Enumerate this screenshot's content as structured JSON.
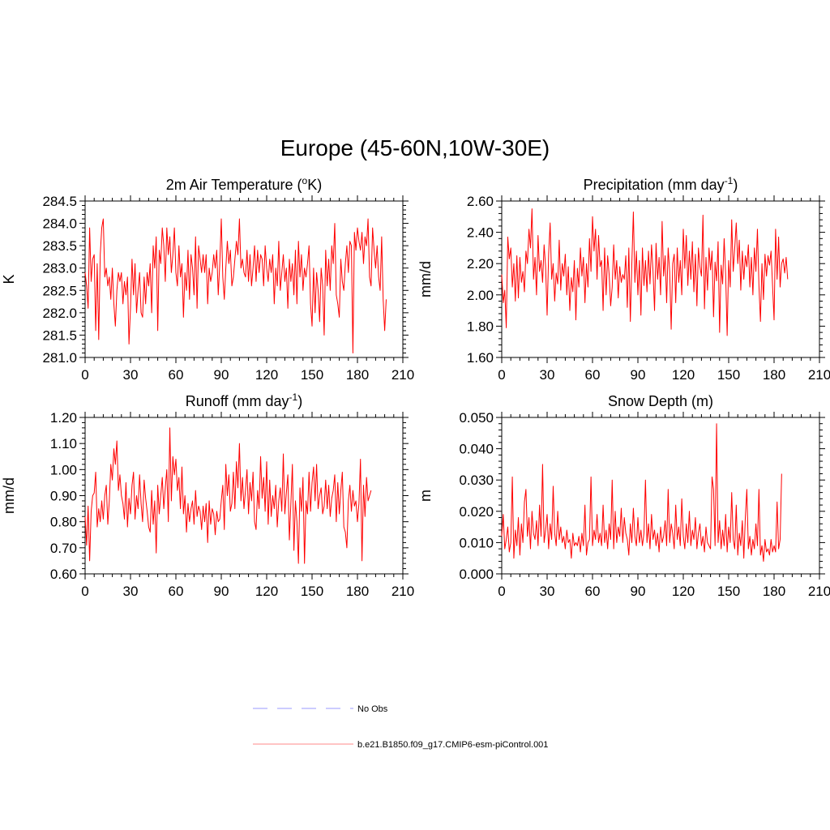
{
  "figure": {
    "title": "Europe (45-60N,10W-30E)"
  },
  "legend": {
    "entries": [
      {
        "label": "No Obs",
        "color": "#9999ff",
        "style": "dashed"
      },
      {
        "label": "b.e21.B1850.f09_g17.CMIP6-esm-piControl.001",
        "color": "#ff8888",
        "style": "solid"
      }
    ]
  },
  "chart_data": [
    {
      "type": "line",
      "title_main": "2m Air Temperature (",
      "title_sup": "o",
      "title_post": "K)",
      "ylabel": "K",
      "xlabel": "",
      "xlim": [
        0,
        210
      ],
      "ylim": [
        281.0,
        284.5
      ],
      "xticks": [
        0,
        30,
        60,
        90,
        120,
        150,
        180,
        210
      ],
      "xtick_labels": [
        "0",
        "30",
        "60",
        "90",
        "120",
        "150",
        "180",
        "210"
      ],
      "yticks": [
        281.0,
        281.5,
        282.0,
        282.5,
        283.0,
        283.5,
        284.0,
        284.5
      ],
      "ytick_labels": [
        "281.0",
        "281.5",
        "282.0",
        "282.5",
        "283.0",
        "283.5",
        "284.0",
        "284.5"
      ],
      "series": [
        {
          "name": "b.e21.B1850.f09_g17.CMIP6-esm-piControl.001",
          "color": "#ff0000",
          "x_start": 0,
          "values": [
            282.9,
            282.6,
            282.1,
            283.9,
            282.7,
            283.2,
            283.3,
            281.6,
            283.1,
            281.4,
            283.3,
            283.9,
            284.1,
            282.8,
            283.0,
            282.6,
            282.8,
            282.3,
            283.0,
            282.2,
            281.7,
            282.5,
            282.9,
            282.7,
            282.9,
            282.2,
            282.7,
            282.4,
            282.8,
            281.3,
            282.1,
            283.2,
            282.4,
            283.1,
            282.0,
            282.5,
            282.9,
            282.0,
            281.9,
            282.8,
            282.2,
            282.9,
            282.6,
            283.1,
            282.0,
            283.5,
            283.0,
            283.7,
            281.6,
            283.4,
            283.1,
            283.9,
            283.5,
            282.7,
            283.9,
            283.3,
            283.7,
            282.9,
            283.3,
            283.9,
            282.9,
            282.6,
            283.5,
            282.8,
            283.1,
            281.9,
            282.9,
            282.5,
            283.4,
            282.3,
            283.3,
            283.0,
            282.4,
            283.7,
            282.1,
            283.5,
            283.2,
            282.9,
            283.3,
            282.9,
            283.3,
            282.2,
            283.0,
            282.7,
            282.9,
            283.3,
            283.0,
            283.4,
            282.4,
            283.1,
            284.1,
            282.8,
            282.3,
            283.0,
            283.6,
            283.1,
            283.4,
            282.6,
            282.8,
            283.2,
            283.6,
            283.3,
            284.1,
            283.0,
            283.2,
            282.9,
            282.8,
            283.4,
            282.7,
            283.3,
            282.6,
            283.0,
            283.5,
            282.7,
            283.4,
            282.9,
            283.3,
            283.2,
            282.6,
            283.5,
            283.0,
            282.7,
            283.2,
            282.9,
            283.3,
            282.2,
            283.0,
            282.6,
            283.6,
            282.5,
            282.9,
            283.3,
            282.7,
            283.0,
            282.1,
            283.2,
            282.7,
            283.1,
            282.4,
            283.4,
            282.2,
            283.6,
            282.8,
            283.3,
            282.5,
            283.0,
            282.8,
            283.1,
            283.5,
            282.2,
            281.7,
            283.0,
            282.0,
            282.9,
            282.5,
            281.8,
            283.0,
            282.6,
            281.5,
            283.4,
            282.6,
            283.2,
            282.5,
            283.5,
            283.1,
            284.0,
            282.4,
            282.2,
            281.9,
            283.2,
            282.7,
            282.5,
            283.1,
            283.5,
            282.9,
            283.6,
            283.5,
            281.1,
            283.8,
            283.4,
            283.9,
            283.6,
            283.4,
            283.8,
            283.1,
            283.7,
            283.5,
            284.1,
            282.8,
            282.6,
            283.9,
            283.4,
            283.0,
            283.5,
            282.8,
            282.5,
            283.7,
            282.3,
            281.6,
            282.3
          ]
        }
      ]
    },
    {
      "type": "line",
      "title_main": "Precipitation (mm day",
      "title_sup": "-1",
      "title_post": ")",
      "ylabel": "mm/d",
      "xlabel": "",
      "xlim": [
        0,
        210
      ],
      "ylim": [
        1.6,
        2.6
      ],
      "xticks": [
        0,
        30,
        60,
        90,
        120,
        150,
        180,
        210
      ],
      "xtick_labels": [
        "0",
        "30",
        "60",
        "90",
        "120",
        "150",
        "180",
        "210"
      ],
      "yticks": [
        1.6,
        1.8,
        2.0,
        2.2,
        2.4,
        2.6
      ],
      "ytick_labels": [
        "1.60",
        "1.80",
        "2.00",
        "2.20",
        "2.40",
        "2.60"
      ],
      "series": [
        {
          "name": "b.e21.B1850.f09_g17.CMIP6-esm-piControl.001",
          "color": "#ff0000",
          "x_start": 0,
          "values": [
            2.13,
            1.95,
            2.03,
            1.79,
            2.37,
            2.23,
            2.3,
            2.05,
            2.2,
            1.96,
            2.25,
            1.98,
            2.24,
            2.08,
            2.15,
            2.02,
            2.28,
            2.2,
            2.42,
            2.3,
            2.55,
            2.1,
            2.24,
            2.0,
            2.38,
            2.15,
            2.22,
            2.08,
            2.32,
            2.18,
            1.87,
            2.26,
            2.46,
            2.1,
            2.2,
            1.96,
            2.14,
            2.07,
            2.35,
            2.03,
            2.2,
            2.12,
            2.26,
            2.0,
            2.18,
            1.9,
            2.11,
            2.02,
            2.22,
            1.84,
            2.17,
            2.05,
            2.3,
            2.12,
            2.24,
            1.95,
            2.2,
            2.05,
            2.36,
            2.15,
            2.5,
            2.28,
            2.42,
            2.1,
            2.38,
            2.18,
            2.22,
            1.9,
            2.3,
            2.0,
            2.25,
            2.13,
            1.93,
            2.05,
            2.32,
            2.1,
            2.22,
            1.98,
            2.18,
            2.08,
            2.13,
            2.1,
            2.25,
            1.92,
            2.3,
            1.83,
            2.2,
            2.53,
            2.08,
            2.28,
            2.0,
            2.22,
            1.87,
            2.3,
            2.06,
            2.22,
            2.02,
            2.28,
            2.07,
            2.32,
            2.15,
            1.9,
            2.33,
            2.1,
            2.24,
            2.0,
            2.47,
            2.12,
            2.25,
            1.95,
            2.3,
            2.15,
            1.78,
            2.2,
            2.26,
            1.95,
            2.3,
            2.08,
            2.22,
            2.0,
            2.42,
            2.17,
            2.38,
            2.06,
            2.28,
            2.1,
            2.34,
            2.02,
            2.26,
            1.93,
            2.3,
            2.18,
            2.12,
            2.51,
            1.91,
            2.24,
            2.03,
            2.3,
            2.16,
            2.28,
            1.86,
            2.21,
            2.09,
            2.34,
            1.76,
            2.19,
            2.07,
            2.36,
            2.13,
            1.74,
            2.22,
            2.05,
            2.48,
            2.15,
            2.3,
            2.46,
            2.2,
            2.35,
            2.03,
            2.28,
            2.1,
            2.25,
            2.18,
            2.32,
            2.05,
            2.24,
            2.0,
            2.3,
            2.15,
            2.42,
            2.06,
            1.83,
            2.2,
            1.97,
            2.26,
            2.12,
            2.25,
            2.19,
            2.28,
            2.06,
            1.84,
            2.42,
            2.1,
            2.37,
            2.05,
            2.2,
            2.23,
            2.14,
            2.24,
            2.1
          ]
        }
      ]
    },
    {
      "type": "line",
      "title_main": "Runoff (mm day",
      "title_sup": "-1",
      "title_post": ")",
      "ylabel": "mm/d",
      "xlabel": "",
      "xlim": [
        0,
        210
      ],
      "ylim": [
        0.6,
        1.2
      ],
      "xticks": [
        0,
        30,
        60,
        90,
        120,
        150,
        180,
        210
      ],
      "xtick_labels": [
        "0",
        "30",
        "60",
        "90",
        "120",
        "150",
        "180",
        "210"
      ],
      "yticks": [
        0.6,
        0.7,
        0.8,
        0.9,
        1.0,
        1.1,
        1.2
      ],
      "ytick_labels": [
        "0.60",
        "0.70",
        "0.80",
        "0.90",
        "1.00",
        "1.10",
        "1.20"
      ],
      "series": [
        {
          "name": "b.e21.B1850.f09_g17.CMIP6-esm-piControl.001",
          "color": "#ff0000",
          "x_start": 0,
          "values": [
            0.82,
            0.71,
            0.86,
            0.65,
            0.84,
            0.9,
            0.91,
            0.99,
            0.78,
            0.85,
            0.8,
            0.88,
            0.81,
            0.9,
            0.94,
            0.79,
            0.88,
            1.02,
            0.96,
            1.08,
            1.02,
            1.11,
            0.92,
            0.98,
            0.9,
            0.87,
            0.81,
            0.95,
            0.78,
            0.89,
            0.83,
            0.94,
            0.99,
            0.81,
            0.9,
            0.85,
            0.98,
            0.87,
            0.8,
            0.96,
            0.89,
            0.84,
            0.78,
            0.76,
            0.92,
            0.79,
            0.88,
            0.68,
            0.94,
            0.83,
            0.9,
            0.97,
            0.85,
            0.93,
            1.0,
            0.8,
            1.16,
            0.88,
            1.05,
            0.98,
            1.04,
            0.92,
            0.97,
            0.85,
            1.01,
            0.83,
            0.9,
            0.76,
            0.87,
            0.8,
            0.85,
            0.88,
            0.79,
            0.92,
            0.82,
            0.86,
            0.84,
            0.77,
            0.86,
            0.8,
            0.87,
            0.72,
            0.88,
            0.79,
            0.85,
            0.83,
            0.75,
            0.84,
            0.8,
            0.81,
            0.88,
            0.94,
            0.77,
            1.02,
            0.9,
            0.98,
            0.84,
            0.87,
            0.99,
            0.85,
            1.03,
            0.93,
            1.1,
            0.88,
            0.97,
            0.85,
            0.92,
            1.0,
            0.83,
            0.95,
            0.88,
            0.99,
            0.8,
            0.77,
            0.92,
            0.85,
            1.05,
            0.89,
            0.97,
            0.84,
            1.03,
            0.79,
            0.96,
            0.82,
            0.9,
            0.85,
            0.94,
            0.78,
            0.88,
            0.93,
            0.84,
            1.06,
            0.83,
            0.91,
            0.98,
            0.73,
            0.87,
            1.02,
            0.69,
            0.88,
            0.8,
            0.64,
            0.93,
            0.84,
            0.97,
            0.64,
            0.88,
            0.83,
            0.99,
            0.84,
            0.95,
            1.01,
            0.88,
            1.02,
            0.85,
            0.9,
            0.93,
            0.83,
            0.86,
            0.96,
            0.85,
            0.94,
            0.82,
            0.89,
            0.92,
            0.98,
            0.8,
            0.95,
            0.83,
            0.92,
            0.99,
            0.78,
            0.76,
            0.7,
            0.88,
            0.94,
            0.84,
            0.92,
            0.86,
            0.88,
            0.8,
            0.87,
            1.04,
            0.65,
            0.94,
            0.82,
            0.97,
            0.88,
            0.9,
            0.92
          ]
        }
      ]
    },
    {
      "type": "line",
      "title_main": "Snow Depth (m)",
      "title_sup": "",
      "title_post": "",
      "ylabel": "m",
      "xlabel": "",
      "xlim": [
        0,
        210
      ],
      "ylim": [
        0.0,
        0.05
      ],
      "xticks": [
        0,
        30,
        60,
        90,
        120,
        150,
        180,
        210
      ],
      "xtick_labels": [
        "0",
        "30",
        "60",
        "90",
        "120",
        "150",
        "180",
        "210"
      ],
      "yticks": [
        0.0,
        0.01,
        0.02,
        0.03,
        0.04,
        0.05
      ],
      "ytick_labels": [
        "0.000",
        "0.010",
        "0.020",
        "0.030",
        "0.040",
        "0.050"
      ],
      "series": [
        {
          "name": "b.e21.B1850.f09_g17.CMIP6-esm-piControl.001",
          "color": "#ff0000",
          "x_start": 0,
          "values": [
            0.012,
            0.019,
            0.008,
            0.011,
            0.015,
            0.007,
            0.01,
            0.031,
            0.005,
            0.014,
            0.009,
            0.018,
            0.006,
            0.016,
            0.01,
            0.023,
            0.027,
            0.012,
            0.018,
            0.008,
            0.02,
            0.013,
            0.011,
            0.017,
            0.009,
            0.022,
            0.012,
            0.035,
            0.01,
            0.014,
            0.019,
            0.008,
            0.016,
            0.011,
            0.028,
            0.013,
            0.009,
            0.02,
            0.011,
            0.015,
            0.01,
            0.012,
            0.008,
            0.014,
            0.01,
            0.011,
            0.005,
            0.013,
            0.009,
            0.01,
            0.009,
            0.012,
            0.007,
            0.013,
            0.009,
            0.022,
            0.006,
            0.01,
            0.011,
            0.031,
            0.009,
            0.014,
            0.011,
            0.019,
            0.01,
            0.013,
            0.009,
            0.022,
            0.01,
            0.014,
            0.008,
            0.016,
            0.011,
            0.03,
            0.008,
            0.02,
            0.01,
            0.015,
            0.012,
            0.021,
            0.01,
            0.018,
            0.013,
            0.011,
            0.006,
            0.016,
            0.01,
            0.021,
            0.012,
            0.009,
            0.018,
            0.01,
            0.014,
            0.009,
            0.013,
            0.03,
            0.01,
            0.016,
            0.008,
            0.019,
            0.011,
            0.014,
            0.009,
            0.013,
            0.007,
            0.015,
            0.01,
            0.012,
            0.017,
            0.009,
            0.027,
            0.01,
            0.016,
            0.013,
            0.008,
            0.022,
            0.011,
            0.015,
            0.009,
            0.024,
            0.012,
            0.008,
            0.016,
            0.01,
            0.02,
            0.009,
            0.014,
            0.011,
            0.018,
            0.008,
            0.013,
            0.016,
            0.009,
            0.012,
            0.007,
            0.015,
            0.01,
            0.009,
            0.008,
            0.031,
            0.027,
            0.009,
            0.048,
            0.01,
            0.017,
            0.008,
            0.014,
            0.009,
            0.019,
            0.007,
            0.015,
            0.01,
            0.026,
            0.011,
            0.008,
            0.022,
            0.006,
            0.013,
            0.009,
            0.017,
            0.005,
            0.018,
            0.027,
            0.008,
            0.012,
            0.006,
            0.011,
            0.008,
            0.016,
            0.009,
            0.027,
            0.006,
            0.009,
            0.004,
            0.011,
            0.007,
            0.008,
            0.006,
            0.011,
            0.007,
            0.009,
            0.007,
            0.023,
            0.008,
            0.011,
            0.032
          ]
        }
      ]
    }
  ]
}
